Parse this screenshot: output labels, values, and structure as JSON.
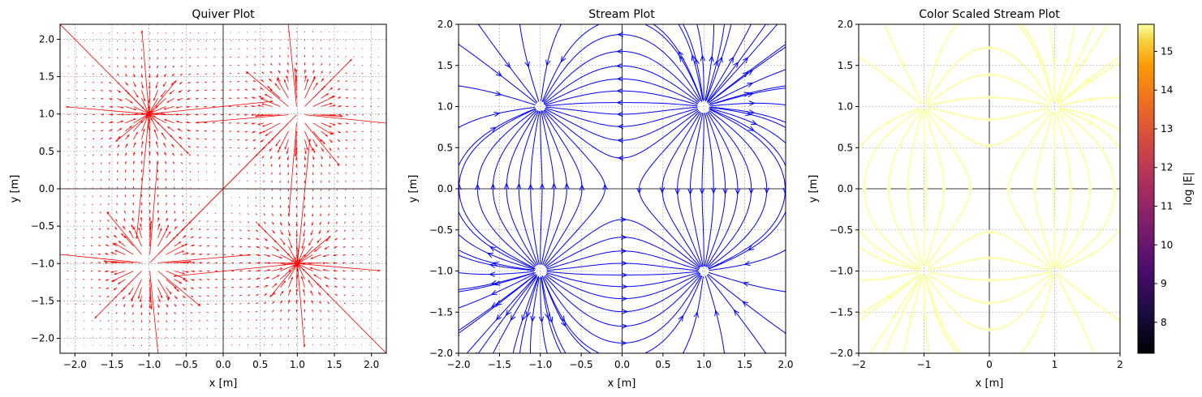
{
  "chart_data": [
    {
      "type": "quiver",
      "title": "Quiver Plot",
      "xlabel": "x [m]",
      "ylabel": "y [m]",
      "xlim": [
        -2.2,
        2.2
      ],
      "ylim": [
        -2.2,
        2.2
      ],
      "xticks": [
        "−2.0",
        "−1.5",
        "−1.0",
        "−0.5",
        "0.0",
        "0.5",
        "1.0",
        "1.5",
        "2.0"
      ],
      "yticks": [
        "−2.0",
        "−1.5",
        "−1.0",
        "−0.5",
        "0.0",
        "0.5",
        "1.0",
        "1.5",
        "2.0"
      ],
      "grid": true,
      "arrow_color": "#ff0000",
      "charges": [
        {
          "x": 1,
          "y": 1,
          "sign": 1
        },
        {
          "x": -1,
          "y": -1,
          "sign": 1
        },
        {
          "x": -1,
          "y": 1,
          "sign": -1
        },
        {
          "x": 1,
          "y": -1,
          "sign": -1
        }
      ]
    },
    {
      "type": "stream",
      "title": "Stream Plot",
      "xlabel": "x [m]",
      "ylabel": "y [m]",
      "xlim": [
        -2,
        2
      ],
      "ylim": [
        -2,
        2
      ],
      "xticks": [
        "−2.0",
        "−1.5",
        "−1.0",
        "−0.5",
        "0.0",
        "0.5",
        "1.0",
        "1.5",
        "2.0"
      ],
      "yticks": [
        "−2.0",
        "−1.5",
        "−1.0",
        "−0.5",
        "0.0",
        "0.5",
        "1.0",
        "1.5",
        "2.0"
      ],
      "grid": true,
      "line_color": "#0000ff",
      "charges": [
        {
          "x": 1,
          "y": 1,
          "sign": 1
        },
        {
          "x": -1,
          "y": -1,
          "sign": 1
        },
        {
          "x": -1,
          "y": 1,
          "sign": -1
        },
        {
          "x": 1,
          "y": -1,
          "sign": -1
        }
      ]
    },
    {
      "type": "stream",
      "title": "Color Scaled Stream Plot",
      "xlabel": "x [m]",
      "ylabel": "y [m]",
      "xlim": [
        -2,
        2
      ],
      "ylim": [
        -2,
        2
      ],
      "xticks": [
        "−2",
        "−1",
        "0",
        "1",
        "2"
      ],
      "yticks": [
        "−2.0",
        "−1.5",
        "−1.0",
        "−0.5",
        "0.0",
        "0.5",
        "1.0",
        "1.5",
        "2.0"
      ],
      "grid": true,
      "colormap": "inferno",
      "colorbar": {
        "label": "log |E|",
        "range": [
          7.2,
          15.7
        ],
        "ticks": [
          "8",
          "9",
          "10",
          "11",
          "12",
          "13",
          "14",
          "15"
        ],
        "tick_values": [
          8,
          9,
          10,
          11,
          12,
          13,
          14,
          15
        ]
      },
      "charges": [
        {
          "x": 1,
          "y": 1,
          "sign": 1
        },
        {
          "x": -1,
          "y": -1,
          "sign": 1
        },
        {
          "x": -1,
          "y": 1,
          "sign": -1
        },
        {
          "x": 1,
          "y": -1,
          "sign": -1
        }
      ]
    }
  ]
}
